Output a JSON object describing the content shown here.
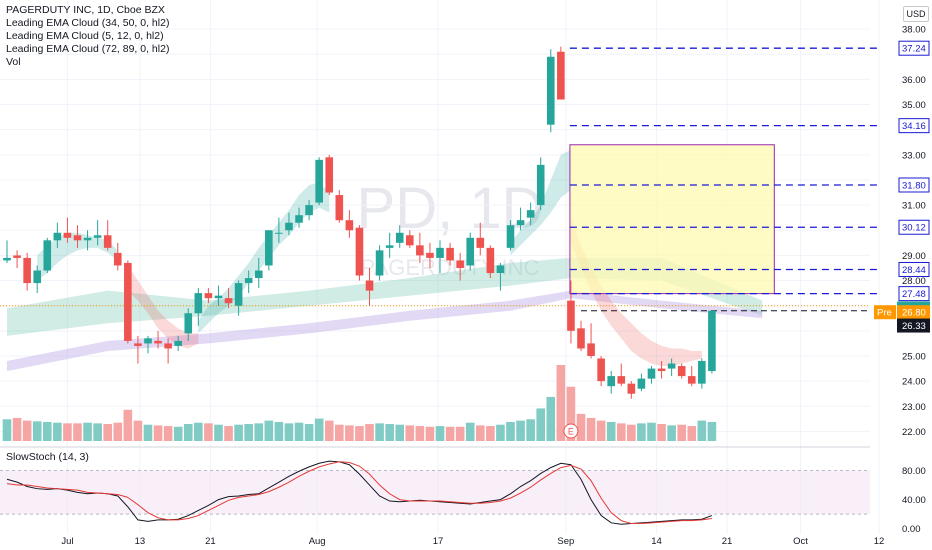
{
  "legend": {
    "title": "PAGERDUTY INC, 1D, Cboe BZX",
    "line1": "Leading EMA Cloud (34, 50, 0, hl2)",
    "line2": "Leading EMA Cloud (5, 12, 0, hl2)",
    "line3": "Leading EMA Cloud (72, 89, 0, hl2)",
    "line4": "Vol"
  },
  "currency": "USD",
  "stoch_title": "SlowStoch (14, 3)",
  "watermark": "PD, 1D",
  "watermark_sub": "PAGERDUTY INC",
  "colors": {
    "up": "#26a69a",
    "down": "#ef5350",
    "up_vol": "#80cbc4",
    "down_vol": "#f5a5a3",
    "level_line": "#1a1ad6",
    "box_fill": "#fff9b0",
    "box_stroke": "#9c27b0",
    "k_line": "#131722",
    "d_line": "#e53935",
    "stoch_band": "#f3e5f5"
  },
  "chart_data": [
    {
      "type": "candlestick",
      "title": "PAGERDUTY INC, 1D, Cboe BZX",
      "x_ticks": [
        "Jul",
        "13",
        "21",
        "Aug",
        "17",
        "Sep",
        "14",
        "21",
        "Oct",
        "12"
      ],
      "y_ticks": [
        "22.00",
        "23.00",
        "24.00",
        "25.00",
        "26.00",
        "27.00",
        "28.00",
        "29.00",
        "30.00",
        "31.00",
        "32.00",
        "33.00",
        "34.00",
        "35.00",
        "36.00",
        "37.00",
        "38.00"
      ],
      "ylim": [
        21.5,
        38.6
      ],
      "candles": [
        {
          "o": 28.8,
          "h": 29.6,
          "l": 28.7,
          "c": 28.9
        },
        {
          "o": 29.0,
          "h": 29.2,
          "l": 28.5,
          "c": 28.9
        },
        {
          "o": 28.9,
          "h": 29.1,
          "l": 27.6,
          "c": 27.9
        },
        {
          "o": 27.9,
          "h": 28.6,
          "l": 27.5,
          "c": 28.4
        },
        {
          "o": 28.4,
          "h": 29.7,
          "l": 28.3,
          "c": 29.6
        },
        {
          "o": 29.6,
          "h": 30.3,
          "l": 29.3,
          "c": 29.9
        },
        {
          "o": 29.9,
          "h": 30.5,
          "l": 29.5,
          "c": 29.7
        },
        {
          "o": 29.8,
          "h": 30.2,
          "l": 29.3,
          "c": 29.6
        },
        {
          "o": 29.6,
          "h": 30.0,
          "l": 29.2,
          "c": 29.7
        },
        {
          "o": 29.7,
          "h": 30.4,
          "l": 29.4,
          "c": 29.8
        },
        {
          "o": 29.8,
          "h": 30.4,
          "l": 29.2,
          "c": 29.3
        },
        {
          "o": 29.1,
          "h": 29.5,
          "l": 28.4,
          "c": 28.6
        },
        {
          "o": 28.7,
          "h": 28.8,
          "l": 25.5,
          "c": 25.6
        },
        {
          "o": 25.5,
          "h": 25.8,
          "l": 24.7,
          "c": 25.4
        },
        {
          "o": 25.5,
          "h": 25.8,
          "l": 25.1,
          "c": 25.7
        },
        {
          "o": 25.6,
          "h": 26.0,
          "l": 25.3,
          "c": 25.5
        },
        {
          "o": 25.5,
          "h": 25.7,
          "l": 24.7,
          "c": 25.3
        },
        {
          "o": 25.4,
          "h": 25.8,
          "l": 25.2,
          "c": 25.6
        },
        {
          "o": 25.9,
          "h": 26.9,
          "l": 25.6,
          "c": 26.7
        },
        {
          "o": 26.7,
          "h": 27.7,
          "l": 26.2,
          "c": 27.5
        },
        {
          "o": 27.5,
          "h": 27.7,
          "l": 27.1,
          "c": 27.3
        },
        {
          "o": 27.3,
          "h": 27.8,
          "l": 27.0,
          "c": 27.4
        },
        {
          "o": 27.3,
          "h": 27.7,
          "l": 26.9,
          "c": 27.1
        },
        {
          "o": 27.0,
          "h": 28.0,
          "l": 26.6,
          "c": 27.9
        },
        {
          "o": 27.9,
          "h": 28.4,
          "l": 27.5,
          "c": 28.1
        },
        {
          "o": 28.1,
          "h": 28.9,
          "l": 27.7,
          "c": 28.4
        },
        {
          "o": 28.6,
          "h": 30.0,
          "l": 28.4,
          "c": 30.0
        },
        {
          "o": 29.9,
          "h": 30.5,
          "l": 29.5,
          "c": 29.9
        },
        {
          "o": 30.0,
          "h": 30.7,
          "l": 29.8,
          "c": 30.3
        },
        {
          "o": 30.3,
          "h": 30.9,
          "l": 30.1,
          "c": 30.6
        },
        {
          "o": 30.6,
          "h": 31.2,
          "l": 30.4,
          "c": 31.0
        },
        {
          "o": 31.1,
          "h": 32.9,
          "l": 31.0,
          "c": 32.8
        },
        {
          "o": 32.9,
          "h": 33.0,
          "l": 31.4,
          "c": 31.5
        },
        {
          "o": 31.4,
          "h": 31.6,
          "l": 30.3,
          "c": 30.4
        },
        {
          "o": 30.4,
          "h": 30.8,
          "l": 29.7,
          "c": 30.0
        },
        {
          "o": 30.1,
          "h": 30.2,
          "l": 28.0,
          "c": 28.2
        },
        {
          "o": 28.0,
          "h": 28.5,
          "l": 27.0,
          "c": 27.6
        },
        {
          "o": 28.2,
          "h": 29.4,
          "l": 28.0,
          "c": 29.2
        },
        {
          "o": 29.3,
          "h": 29.9,
          "l": 28.9,
          "c": 29.4
        },
        {
          "o": 29.5,
          "h": 30.2,
          "l": 29.3,
          "c": 29.9
        },
        {
          "o": 29.8,
          "h": 30.0,
          "l": 29.3,
          "c": 29.4
        },
        {
          "o": 29.4,
          "h": 29.9,
          "l": 28.7,
          "c": 29.0
        },
        {
          "o": 29.1,
          "h": 29.5,
          "l": 28.5,
          "c": 28.9
        },
        {
          "o": 28.9,
          "h": 29.6,
          "l": 28.3,
          "c": 29.3
        },
        {
          "o": 29.3,
          "h": 29.5,
          "l": 28.6,
          "c": 28.8
        },
        {
          "o": 28.8,
          "h": 29.1,
          "l": 28.0,
          "c": 28.5
        },
        {
          "o": 28.6,
          "h": 29.9,
          "l": 28.4,
          "c": 29.7
        },
        {
          "o": 29.7,
          "h": 30.3,
          "l": 29.0,
          "c": 29.3
        },
        {
          "o": 29.3,
          "h": 29.4,
          "l": 28.1,
          "c": 28.3
        },
        {
          "o": 28.3,
          "h": 28.7,
          "l": 27.6,
          "c": 28.6
        },
        {
          "o": 29.3,
          "h": 30.4,
          "l": 29.2,
          "c": 30.2
        },
        {
          "o": 30.2,
          "h": 30.9,
          "l": 30.0,
          "c": 30.4
        },
        {
          "o": 30.5,
          "h": 31.1,
          "l": 30.2,
          "c": 30.8
        },
        {
          "o": 31.0,
          "h": 32.9,
          "l": 30.8,
          "c": 32.6
        },
        {
          "o": 34.2,
          "h": 37.2,
          "l": 33.9,
          "c": 36.9
        },
        {
          "o": 37.1,
          "h": 37.3,
          "l": 35.2,
          "c": 35.2
        },
        {
          "o": 27.2,
          "h": 28.0,
          "l": 25.5,
          "c": 26.0
        },
        {
          "o": 26.1,
          "h": 26.4,
          "l": 25.2,
          "c": 25.3
        },
        {
          "o": 25.5,
          "h": 26.3,
          "l": 24.9,
          "c": 25.0
        },
        {
          "o": 24.9,
          "h": 25.0,
          "l": 23.8,
          "c": 24.0
        },
        {
          "o": 23.8,
          "h": 24.4,
          "l": 23.5,
          "c": 24.2
        },
        {
          "o": 24.2,
          "h": 24.7,
          "l": 23.8,
          "c": 23.9
        },
        {
          "o": 23.9,
          "h": 24.0,
          "l": 23.3,
          "c": 23.5
        },
        {
          "o": 23.7,
          "h": 24.3,
          "l": 23.6,
          "c": 24.1
        },
        {
          "o": 24.1,
          "h": 24.6,
          "l": 23.9,
          "c": 24.5
        },
        {
          "o": 24.5,
          "h": 24.8,
          "l": 24.1,
          "c": 24.4
        },
        {
          "o": 24.5,
          "h": 24.9,
          "l": 24.2,
          "c": 24.7
        },
        {
          "o": 24.6,
          "h": 24.7,
          "l": 24.1,
          "c": 24.2
        },
        {
          "o": 24.2,
          "h": 24.6,
          "l": 23.8,
          "c": 23.9
        },
        {
          "o": 23.9,
          "h": 24.9,
          "l": 23.7,
          "c": 24.8
        },
        {
          "o": 24.4,
          "h": 26.8,
          "l": 24.3,
          "c": 26.8
        }
      ],
      "volume": [
        32,
        34,
        30,
        29,
        28,
        27,
        26,
        26,
        27,
        26,
        25,
        27,
        46,
        30,
        24,
        23,
        22,
        21,
        25,
        27,
        26,
        24,
        22,
        24,
        25,
        26,
        30,
        28,
        26,
        27,
        25,
        33,
        30,
        24,
        23,
        22,
        25,
        26,
        25,
        24,
        23,
        22,
        21,
        22,
        21,
        21,
        27,
        23,
        22,
        24,
        28,
        30,
        32,
        48,
        65,
        112,
        80,
        40,
        34,
        30,
        28,
        26,
        24,
        26,
        27,
        25,
        23,
        24,
        22,
        30,
        28
      ],
      "price_levels": [
        {
          "value": 37.24,
          "label": "37.24"
        },
        {
          "value": 34.16,
          "label": "34.16"
        },
        {
          "value": 31.8,
          "label": "31.80"
        },
        {
          "value": 30.12,
          "label": "30.12"
        },
        {
          "value": 28.44,
          "label": "28.44"
        },
        {
          "value": 27.48,
          "label": "27.48"
        }
      ],
      "dashed_level": 26.8,
      "prev_close_dotted": 27.0,
      "box": {
        "from_bar": 56,
        "to_bar": 76,
        "top": 33.4,
        "bottom": 27.48
      },
      "price_tags": [
        {
          "label": "26.81",
          "value": 26.81,
          "color": "#26a69a"
        },
        {
          "label": "26.80",
          "value": 26.8,
          "color": "#ff9800",
          "prefix": "Pre"
        },
        {
          "label": "26.33",
          "value": 26.33,
          "color": "#131722"
        }
      ],
      "earnings_marker": "E",
      "clouds": [
        {
          "name": "Leading EMA Cloud (34, 50, 0, hl2)",
          "color": "rgba(120,200,180,0.35)",
          "upper": [
            [
              0,
              26.9
            ],
            [
              10,
              27.6
            ],
            [
              20,
              27.2
            ],
            [
              30,
              27.6
            ],
            [
              40,
              28.1
            ],
            [
              50,
              28.7
            ],
            [
              56,
              28.9
            ],
            [
              65,
              28.9
            ],
            [
              75,
              27.2
            ]
          ],
          "lower": [
            [
              0,
              25.8
            ],
            [
              10,
              26.3
            ],
            [
              20,
              26.6
            ],
            [
              30,
              27.0
            ],
            [
              40,
              27.4
            ],
            [
              50,
              27.8
            ],
            [
              56,
              28.1
            ],
            [
              65,
              28.0
            ],
            [
              75,
              26.6
            ]
          ]
        },
        {
          "name": "Leading EMA Cloud (72, 89, 0, hl2)",
          "color": "rgba(190,170,230,0.45)",
          "upper": [
            [
              0,
              24.8
            ],
            [
              10,
              25.6
            ],
            [
              20,
              25.9
            ],
            [
              30,
              26.3
            ],
            [
              40,
              26.8
            ],
            [
              50,
              27.2
            ],
            [
              56,
              27.6
            ],
            [
              65,
              27.2
            ],
            [
              75,
              26.8
            ]
          ],
          "lower": [
            [
              0,
              24.4
            ],
            [
              10,
              25.2
            ],
            [
              20,
              25.5
            ],
            [
              30,
              25.9
            ],
            [
              40,
              26.4
            ],
            [
              50,
              26.8
            ],
            [
              56,
              27.3
            ],
            [
              65,
              26.9
            ],
            [
              75,
              26.5
            ]
          ]
        }
      ],
      "short_cloud_up": [
        {
          "from": 3,
          "to": 12,
          "upper": [
            29.0,
            29.4,
            29.7,
            29.9,
            29.9,
            29.8,
            29.7,
            29.6,
            29.2
          ],
          "lower": [
            28.0,
            28.3,
            28.7,
            29.0,
            29.2,
            29.3,
            29.3,
            29.1,
            28.8
          ]
        },
        {
          "from": 19,
          "to": 33,
          "upper": [
            26.4,
            27.0,
            27.3,
            27.7,
            28.2,
            28.7,
            29.3,
            29.8,
            30.3,
            30.8,
            31.4,
            31.8,
            31.9,
            31.5
          ],
          "lower": [
            25.9,
            26.3,
            26.7,
            27.0,
            27.4,
            27.9,
            28.4,
            28.9,
            29.4,
            29.8,
            30.3,
            30.7,
            30.9,
            30.7
          ]
        },
        {
          "from": 50,
          "to": 57,
          "upper": [
            29.5,
            30.0,
            30.4,
            31.0,
            32.0,
            33.0,
            33.2
          ],
          "lower": [
            29.0,
            29.4,
            29.8,
            30.2,
            30.7,
            31.3,
            31.6
          ]
        }
      ],
      "short_cloud_down": [
        {
          "from": 12,
          "to": 20,
          "upper": [
            28.6,
            28.0,
            27.4,
            26.8,
            26.4,
            26.1,
            25.9,
            25.9
          ],
          "lower": [
            27.6,
            27.2,
            26.7,
            26.1,
            25.7,
            25.4,
            25.3,
            25.5
          ]
        },
        {
          "from": 56,
          "to": 70,
          "upper": [
            30.5,
            29.4,
            28.5,
            27.8,
            27.2,
            26.7,
            26.3,
            25.9,
            25.6,
            25.4,
            25.3,
            25.3,
            25.2,
            25.2
          ],
          "lower": [
            29.5,
            28.5,
            27.6,
            26.8,
            26.2,
            25.7,
            25.2,
            24.9,
            24.7,
            24.6,
            24.6,
            24.7,
            24.8,
            24.9
          ]
        }
      ]
    },
    {
      "type": "line",
      "title": "SlowStoch (14, 3)",
      "y_ticks": [
        "0.00",
        "40.00",
        "80.00"
      ],
      "ylim": [
        -6,
        100
      ],
      "band": [
        20,
        80
      ],
      "series": [
        {
          "name": "K",
          "values": [
            68,
            64,
            58,
            55,
            54,
            55,
            53,
            50,
            48,
            49,
            48,
            45,
            30,
            12,
            10,
            12,
            12,
            13,
            18,
            25,
            32,
            40,
            44,
            45,
            47,
            48,
            56,
            64,
            72,
            79,
            85,
            90,
            93,
            92,
            88,
            75,
            60,
            45,
            38,
            37,
            38,
            39,
            38,
            37,
            36,
            35,
            34,
            36,
            38,
            40,
            48,
            58,
            66,
            76,
            84,
            90,
            88,
            68,
            40,
            18,
            8,
            6,
            7,
            8,
            9,
            10,
            11,
            12,
            12,
            13,
            18
          ]
        },
        {
          "name": "D",
          "values": [
            62,
            60,
            60,
            58,
            56,
            55,
            54,
            53,
            50,
            49,
            48,
            47,
            43,
            33,
            22,
            15,
            12,
            12,
            14,
            18,
            25,
            32,
            39,
            43,
            45,
            47,
            51,
            57,
            64,
            72,
            79,
            85,
            89,
            92,
            91,
            86,
            75,
            60,
            48,
            40,
            38,
            38,
            38,
            38,
            37,
            36,
            35,
            35,
            36,
            38,
            42,
            49,
            57,
            67,
            76,
            84,
            87,
            82,
            66,
            42,
            22,
            11,
            7,
            7,
            8,
            9,
            10,
            11,
            11,
            12,
            14
          ]
        }
      ]
    }
  ]
}
